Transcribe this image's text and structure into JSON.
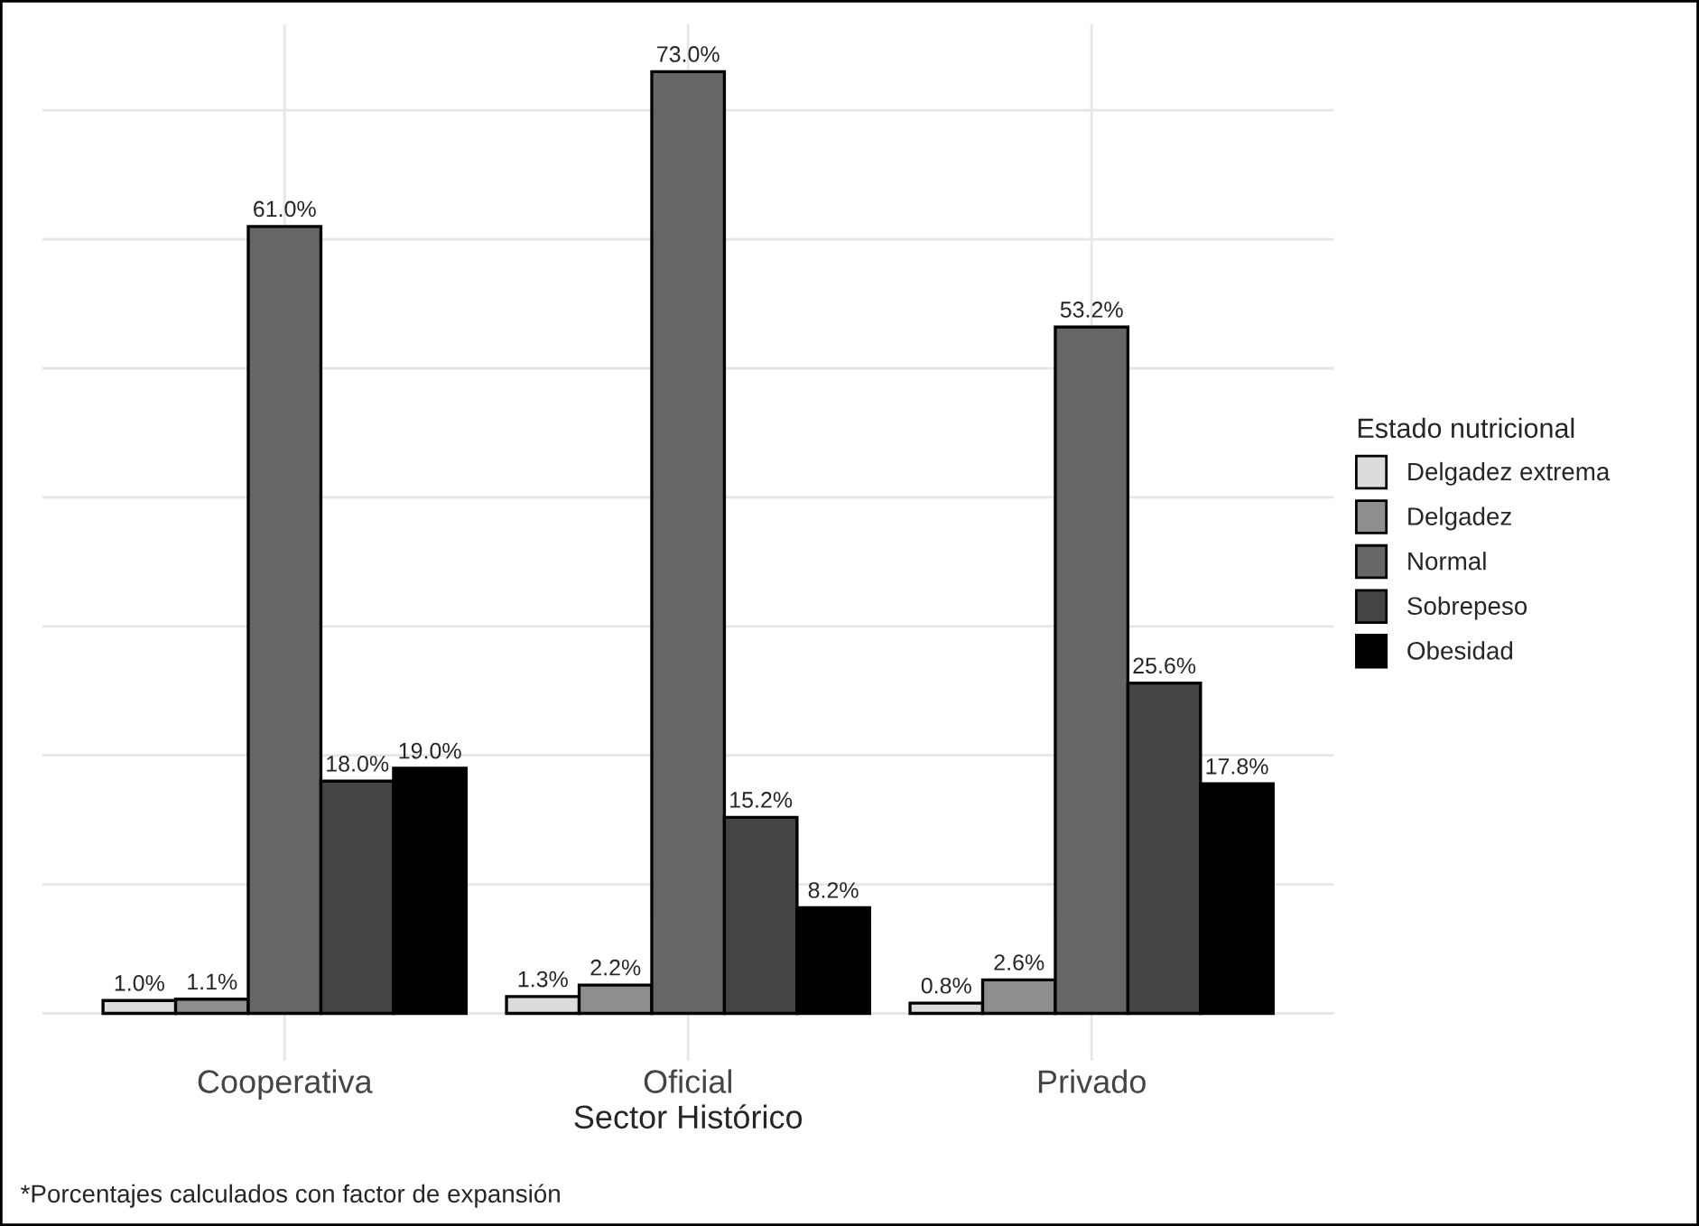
{
  "chart_data": {
    "type": "bar",
    "xlabel": "Sector Histórico",
    "legend_title": "Estado nutricional",
    "categories": [
      "Cooperativa",
      "Oficial",
      "Privado"
    ],
    "series": [
      {
        "name": "Delgadez extrema",
        "color": "#dcdcdc",
        "values": [
          1.0,
          1.3,
          0.8
        ],
        "value_labels": [
          "1.0%",
          "1.3%",
          "0.8%"
        ]
      },
      {
        "name": "Delgadez",
        "color": "#8e8e8e",
        "values": [
          1.1,
          2.2,
          2.6
        ],
        "value_labels": [
          "1.1%",
          "2.2%",
          "2.6%"
        ]
      },
      {
        "name": "Normal",
        "color": "#666666",
        "values": [
          61.0,
          73.0,
          53.2
        ],
        "value_labels": [
          "61.0%",
          "73.0%",
          "53.2%"
        ]
      },
      {
        "name": "Sobrepeso",
        "color": "#444444",
        "values": [
          18.0,
          15.2,
          25.6
        ],
        "value_labels": [
          "18.0%",
          "15.2%",
          "25.6%"
        ]
      },
      {
        "name": "Obesidad",
        "color": "#000000",
        "values": [
          19.0,
          8.2,
          17.8
        ],
        "value_labels": [
          "19.0%",
          "8.2%",
          "17.8%"
        ]
      }
    ],
    "ylim": [
      -3.65,
      76.65
    ],
    "yticks": [
      {
        "value": 0,
        "label": null
      },
      {
        "value": 10,
        "label": null
      },
      {
        "value": 20,
        "label": null
      },
      {
        "value": 30,
        "label": null
      },
      {
        "value": 40,
        "label": null
      },
      {
        "value": 50,
        "label": null
      },
      {
        "value": 60,
        "label": null
      },
      {
        "value": 70,
        "label": null
      }
    ],
    "tick_labels": "x",
    "grid": true,
    "legend": "right",
    "annotations": [
      "*Porcentajes calculados con factor de expansión"
    ]
  }
}
